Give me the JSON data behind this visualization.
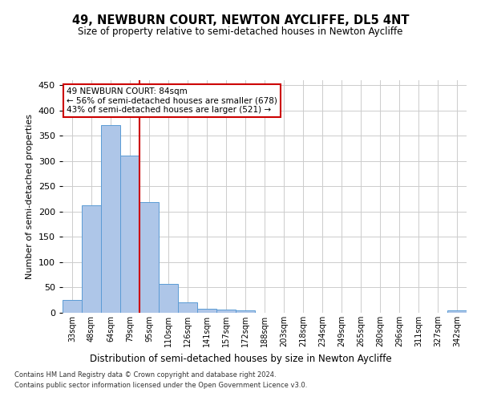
{
  "title": "49, NEWBURN COURT, NEWTON AYCLIFFE, DL5 4NT",
  "subtitle": "Size of property relative to semi-detached houses in Newton Aycliffe",
  "xlabel": "Distribution of semi-detached houses by size in Newton Aycliffe",
  "ylabel": "Number of semi-detached properties",
  "footnote1": "Contains HM Land Registry data © Crown copyright and database right 2024.",
  "footnote2": "Contains public sector information licensed under the Open Government Licence v3.0.",
  "annotation_title": "49 NEWBURN COURT: 84sqm",
  "annotation_line1": "← 56% of semi-detached houses are smaller (678)",
  "annotation_line2": "43% of semi-detached houses are larger (521) →",
  "property_size": 84,
  "bar_categories": [
    "33sqm",
    "48sqm",
    "64sqm",
    "79sqm",
    "95sqm",
    "110sqm",
    "126sqm",
    "141sqm",
    "157sqm",
    "172sqm",
    "188sqm",
    "203sqm",
    "218sqm",
    "234sqm",
    "249sqm",
    "265sqm",
    "280sqm",
    "296sqm",
    "311sqm",
    "327sqm",
    "342sqm"
  ],
  "bar_values": [
    25,
    212,
    371,
    311,
    219,
    57,
    20,
    8,
    6,
    4,
    0,
    0,
    0,
    0,
    0,
    0,
    0,
    0,
    0,
    0,
    5
  ],
  "bar_color": "#aec6e8",
  "bar_edge_color": "#5b9bd5",
  "highlight_line_color": "#cc0000",
  "grid_color": "#cccccc",
  "background_color": "#ffffff",
  "annotation_box_edge_color": "#cc0000",
  "ylim": [
    0,
    460
  ],
  "yticks": [
    0,
    50,
    100,
    150,
    200,
    250,
    300,
    350,
    400,
    450
  ]
}
